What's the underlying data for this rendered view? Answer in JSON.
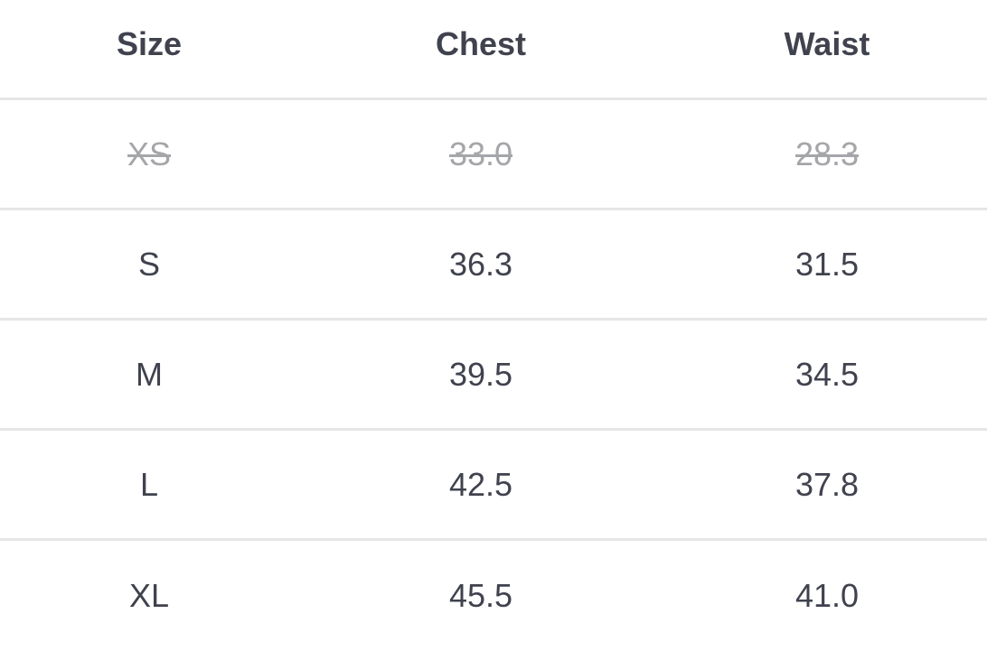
{
  "headers": [
    "Size",
    "Chest",
    "Waist"
  ],
  "rows": [
    {
      "size": "XS",
      "chest": "33.0",
      "waist": "28.3",
      "unavailable": true
    },
    {
      "size": "S",
      "chest": "36.3",
      "waist": "31.5"
    },
    {
      "size": "M",
      "chest": "39.5",
      "waist": "34.5"
    },
    {
      "size": "L",
      "chest": "42.5",
      "waist": "37.8"
    },
    {
      "size": "XL",
      "chest": "45.5",
      "waist": "41.0"
    }
  ],
  "colors": {
    "text": "#40424e",
    "unavailable_text": "#a5a6aa",
    "divider": "#e6e6e8"
  }
}
